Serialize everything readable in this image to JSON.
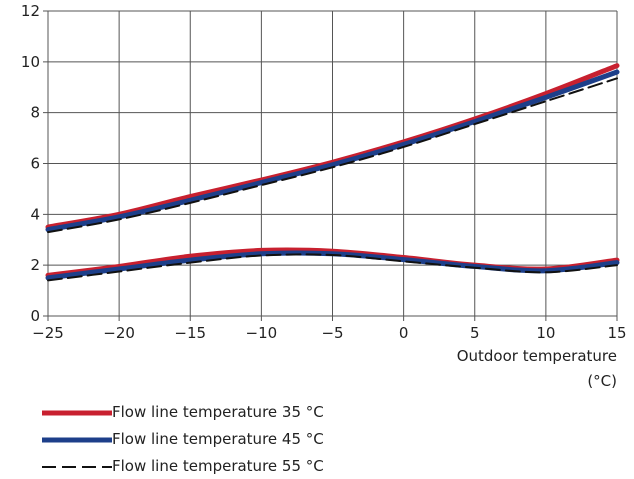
{
  "chart_data": {
    "type": "line",
    "title": "",
    "xlabel": "Outdoor temperature",
    "xlabel_unit": "(°C)",
    "ylabel": "",
    "xlim": [
      -25,
      15
    ],
    "ylim": [
      0,
      12
    ],
    "x_ticks": [
      -25,
      -20,
      -15,
      -10,
      -5,
      0,
      5,
      10,
      15
    ],
    "y_ticks": [
      0,
      2,
      4,
      6,
      8,
      10,
      12
    ],
    "x_tick_labels": [
      "−25",
      "−20",
      "−15",
      "−10",
      "−5",
      "0",
      "5",
      "10",
      "15"
    ],
    "y_tick_labels": [
      "0",
      "2",
      "4",
      "6",
      "8",
      "10",
      "12"
    ],
    "grid": true,
    "legend_position": "bottom-left",
    "x": [
      -25,
      -20,
      -15,
      -10,
      -5,
      0,
      5,
      10,
      15
    ],
    "series": [
      {
        "name": "Flow line temperature 35 °C",
        "color": "#c8202f",
        "style": "solid",
        "curves": [
          [
            3.5,
            4.0,
            4.7,
            5.35,
            6.05,
            6.85,
            7.75,
            8.75,
            9.85
          ],
          [
            1.6,
            1.95,
            2.35,
            2.58,
            2.55,
            2.3,
            2.0,
            1.85,
            2.2
          ]
        ]
      },
      {
        "name": "Flow line temperature 45 °C",
        "color": "#1d3f8a",
        "style": "solid",
        "curves": [
          [
            3.4,
            3.9,
            4.55,
            5.25,
            5.95,
            6.75,
            7.65,
            8.6,
            9.6
          ],
          [
            1.5,
            1.85,
            2.2,
            2.45,
            2.45,
            2.22,
            1.95,
            1.78,
            2.1
          ]
        ]
      },
      {
        "name": "Flow line temperature 55 °C",
        "color": "#111111",
        "style": "dashed",
        "curves": [
          [
            3.3,
            3.8,
            4.45,
            5.15,
            5.85,
            6.65,
            7.55,
            8.45,
            9.35
          ],
          [
            1.4,
            1.75,
            2.1,
            2.38,
            2.4,
            2.15,
            1.9,
            1.72,
            2.0
          ]
        ]
      }
    ]
  }
}
